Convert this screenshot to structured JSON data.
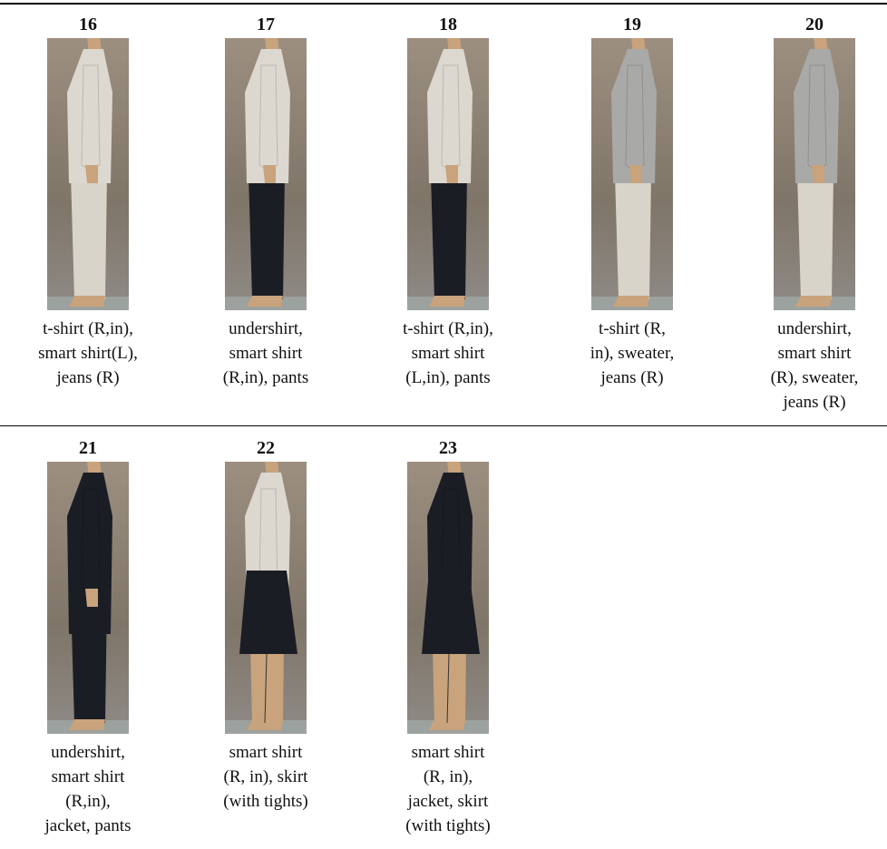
{
  "rows": [
    [
      {
        "number": "16",
        "caption": [
          "t-shirt (R,in),",
          "smart shirt(L),",
          "jeans (R)"
        ]
      },
      {
        "number": "17",
        "caption": [
          "undershirt,",
          "smart shirt",
          "(R,in), pants"
        ]
      },
      {
        "number": "18",
        "caption": [
          "t-shirt (R,in),",
          "smart shirt",
          "(L,in), pants"
        ]
      },
      {
        "number": "19",
        "caption": [
          "t-shirt (R,",
          "in), sweater,",
          "jeans (R)"
        ]
      },
      {
        "number": "20",
        "caption": [
          "undershirt,",
          "smart shirt",
          "(R), sweater,",
          "jeans (R)"
        ]
      }
    ],
    [
      {
        "number": "21",
        "caption": [
          "undershirt,",
          "smart shirt",
          "(R,in),",
          "jacket, pants"
        ]
      },
      {
        "number": "22",
        "caption": [
          "smart shirt",
          "(R, in), skirt",
          "(with tights)"
        ]
      },
      {
        "number": "23",
        "caption": [
          "smart shirt",
          "(R, in),",
          "jacket, skirt",
          "(with tights)"
        ]
      }
    ]
  ]
}
